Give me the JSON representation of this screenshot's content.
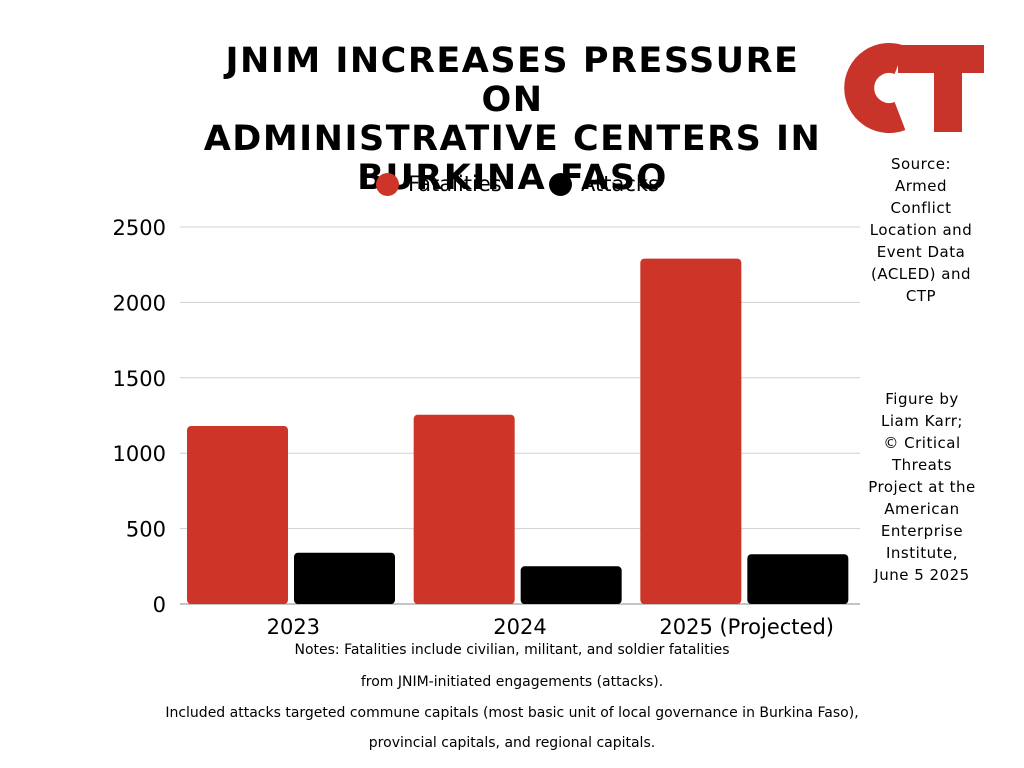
{
  "title_lines": [
    "JNIM INCREASES PRESSURE ON",
    "ADMINISTRATIVE CENTERS IN",
    "BURKINA FASO"
  ],
  "logo": {
    "text": "CT",
    "color": "#c8342a"
  },
  "source_lines": [
    "Source:",
    "Armed",
    "Conflict",
    "Location and",
    "Event Data",
    "(ACLED) and",
    "CTP"
  ],
  "credit_lines": [
    "Figure by",
    "Liam Karr;",
    "© Critical",
    "Threats",
    "Project at the",
    "American",
    "Enterprise",
    "Institute,",
    "June 5 2025"
  ],
  "notes": [
    "Notes: Fatalities include civilian, militant, and soldier fatalities",
    "from JNIM-initiated engagements (attacks).",
    "Included attacks targeted commune capitals (most basic unit of local governance in Burkina Faso),",
    "provincial capitals, and regional capitals."
  ],
  "chart_data": {
    "type": "bar",
    "categories": [
      "2023",
      "2024",
      "2025 (Projected)"
    ],
    "series": [
      {
        "name": "Fatalities",
        "color": "#cc3527",
        "values": [
          1180,
          1255,
          2290
        ]
      },
      {
        "name": "Attacks",
        "color": "#000000",
        "values": [
          340,
          250,
          330
        ]
      }
    ],
    "ylim": [
      0,
      2500
    ],
    "yticks": [
      "0",
      "500",
      "1000",
      "1500",
      "2000",
      "2500"
    ],
    "grid": true,
    "legend_position": "top"
  }
}
